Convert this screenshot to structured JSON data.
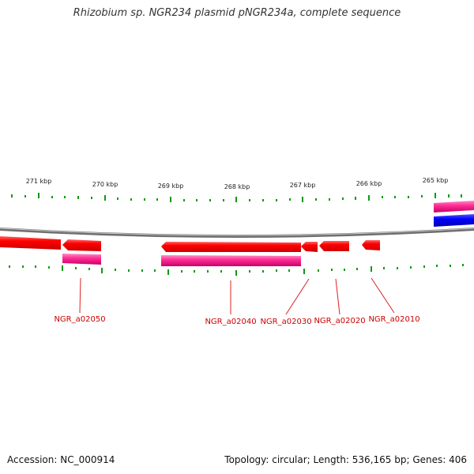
{
  "title": "Rhizobium sp. NGR234 plasmid pNGR234a, complete sequence",
  "accession": "Accession: NC_000914",
  "summary": "Topology: circular; Length: 536,165 bp; Genes: 406",
  "ruler_labels": [
    "271 kbp",
    "270 kbp",
    "269 kbp",
    "268 kbp",
    "267 kbp",
    "266 kbp",
    "265 kbp"
  ],
  "gene_labels": [
    "NGR_a02050",
    "NGR_a02040",
    "NGR_a02030",
    "NGR_a02020",
    "NGR_a02010"
  ],
  "colors": {
    "cds": "#ff0000",
    "gene": "#ff2f95",
    "blue_feature": "#0000ff",
    "backbone": "#8a8a8a",
    "ticks": "#119911",
    "gene_label": "#cc0000"
  }
}
